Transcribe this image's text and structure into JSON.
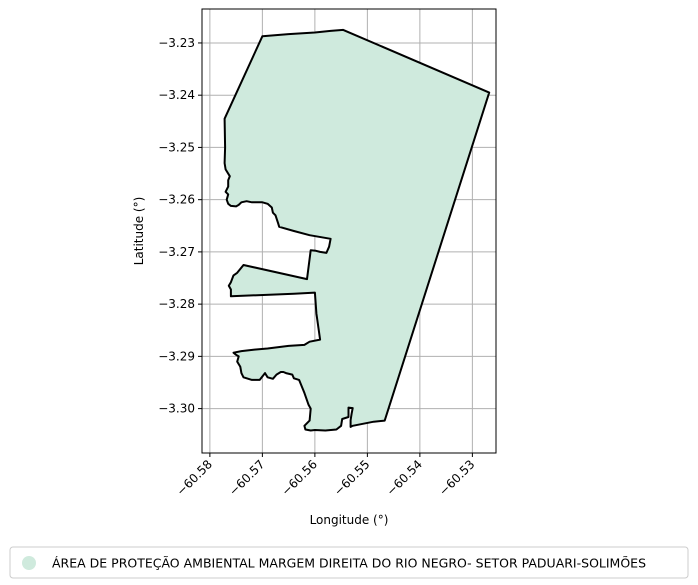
{
  "chart_data": {
    "type": "map",
    "xlabel": "Longitude (°)",
    "ylabel": "Latitude (°)",
    "xlim": [
      -60.5815,
      -60.5255
    ],
    "ylim": [
      -3.3085,
      -3.2235
    ],
    "xticks": [
      -60.58,
      -60.57,
      -60.56,
      -60.55,
      -60.54,
      -60.53
    ],
    "xtick_labels": [
      "−60.58",
      "−60.57",
      "−60.56",
      "−60.55",
      "−60.54",
      "−60.53"
    ],
    "yticks": [
      -3.23,
      -3.24,
      -3.25,
      -3.26,
      -3.27,
      -3.28,
      -3.29,
      -3.3
    ],
    "ytick_labels": [
      "−3.23",
      "−3.24",
      "−3.25",
      "−3.26",
      "−3.27",
      "−3.28",
      "−3.29",
      "−3.30"
    ],
    "grid": true,
    "legend_placement": "bottom",
    "legend": [
      {
        "label": "ÁREA DE PROTEÇÃO AMBIENTAL MARGEM DIREITA DO RIO NEGRO- SETOR PADUARI-SOLIMÕES",
        "color": "#cfeadd"
      }
    ],
    "polygon_fill": "#cfeadd",
    "polygon_stroke": "#000000",
    "polygon": [
      [
        -60.5546,
        -3.2275
      ],
      [
        -60.5268,
        -3.2395
      ],
      [
        -60.5467,
        -3.3023
      ],
      [
        -60.5488,
        -3.3025
      ],
      [
        -60.5528,
        -3.3033
      ],
      [
        -60.5532,
        -3.3035
      ],
      [
        -60.5532,
        -3.3022
      ],
      [
        -60.553,
        -3.301
      ],
      [
        -60.5528,
        -3.2999
      ],
      [
        -60.5536,
        -3.2998
      ],
      [
        -60.5536,
        -3.3016
      ],
      [
        -60.5548,
        -3.302
      ],
      [
        -60.555,
        -3.3033
      ],
      [
        -60.5559,
        -3.304
      ],
      [
        -60.558,
        -3.3042
      ],
      [
        -60.56,
        -3.3041
      ],
      [
        -60.5608,
        -3.3042
      ],
      [
        -60.5618,
        -3.304
      ],
      [
        -60.562,
        -3.3033
      ],
      [
        -60.561,
        -3.3023
      ],
      [
        -60.5608,
        -3.3
      ],
      [
        -60.5612,
        -3.2993
      ],
      [
        -60.562,
        -3.297
      ],
      [
        -60.563,
        -3.2945
      ],
      [
        -60.564,
        -3.2942
      ],
      [
        -60.5643,
        -3.2935
      ],
      [
        -60.5655,
        -3.2932
      ],
      [
        -60.566,
        -3.293
      ],
      [
        -60.5665,
        -3.293
      ],
      [
        -60.5673,
        -3.2935
      ],
      [
        -60.568,
        -3.2943
      ],
      [
        -60.569,
        -3.294
      ],
      [
        -60.5695,
        -3.2932
      ],
      [
        -60.5705,
        -3.2945
      ],
      [
        -60.572,
        -3.2945
      ],
      [
        -60.5736,
        -3.294
      ],
      [
        -60.574,
        -3.2932
      ],
      [
        -60.5742,
        -3.292
      ],
      [
        -60.5748,
        -3.291
      ],
      [
        -60.5745,
        -3.29
      ],
      [
        -60.575,
        -3.2897
      ],
      [
        -60.5755,
        -3.2893
      ],
      [
        -60.574,
        -3.289
      ],
      [
        -60.5715,
        -3.2887
      ],
      [
        -60.569,
        -3.2885
      ],
      [
        -60.565,
        -3.288
      ],
      [
        -60.562,
        -3.2878
      ],
      [
        -60.561,
        -3.2872
      ],
      [
        -60.559,
        -3.2868
      ],
      [
        -60.5597,
        -3.2818
      ],
      [
        -60.56,
        -3.2778
      ],
      [
        -60.564,
        -3.278
      ],
      [
        -60.576,
        -3.2785
      ],
      [
        -60.576,
        -3.2772
      ],
      [
        -60.5764,
        -3.2765
      ],
      [
        -60.576,
        -3.2758
      ],
      [
        -60.5755,
        -3.2745
      ],
      [
        -60.5748,
        -3.274
      ],
      [
        -60.5736,
        -3.2725
      ],
      [
        -60.5615,
        -3.2752
      ],
      [
        -60.5608,
        -3.2697
      ],
      [
        -60.5598,
        -3.2698
      ],
      [
        -60.559,
        -3.27
      ],
      [
        -60.5578,
        -3.2702
      ],
      [
        -60.5573,
        -3.269
      ],
      [
        -60.557,
        -3.2675
      ],
      [
        -60.561,
        -3.2668
      ],
      [
        -60.564,
        -3.266
      ],
      [
        -60.5668,
        -3.2652
      ],
      [
        -60.567,
        -3.2645
      ],
      [
        -60.5675,
        -3.263
      ],
      [
        -60.568,
        -3.2625
      ],
      [
        -60.5682,
        -3.2615
      ],
      [
        -60.569,
        -3.2608
      ],
      [
        -60.57,
        -3.2605
      ],
      [
        -60.571,
        -3.2605
      ],
      [
        -60.572,
        -3.2605
      ],
      [
        -60.573,
        -3.2603
      ],
      [
        -60.574,
        -3.2605
      ],
      [
        -60.5745,
        -3.261
      ],
      [
        -60.575,
        -3.2613
      ],
      [
        -60.576,
        -3.2612
      ],
      [
        -60.5765,
        -3.2608
      ],
      [
        -60.5768,
        -3.26
      ],
      [
        -60.5765,
        -3.259
      ],
      [
        -60.577,
        -3.2585
      ],
      [
        -60.5765,
        -3.2575
      ],
      [
        -60.5765,
        -3.2563
      ],
      [
        -60.5762,
        -3.2555
      ],
      [
        -60.577,
        -3.2542
      ],
      [
        -60.5772,
        -3.253
      ],
      [
        -60.5771,
        -3.25
      ],
      [
        -60.5772,
        -3.2445
      ],
      [
        -60.57,
        -3.2287
      ],
      [
        -60.565,
        -3.2283
      ],
      [
        -60.56,
        -3.228
      ],
      [
        -60.557,
        -3.2277
      ]
    ]
  }
}
